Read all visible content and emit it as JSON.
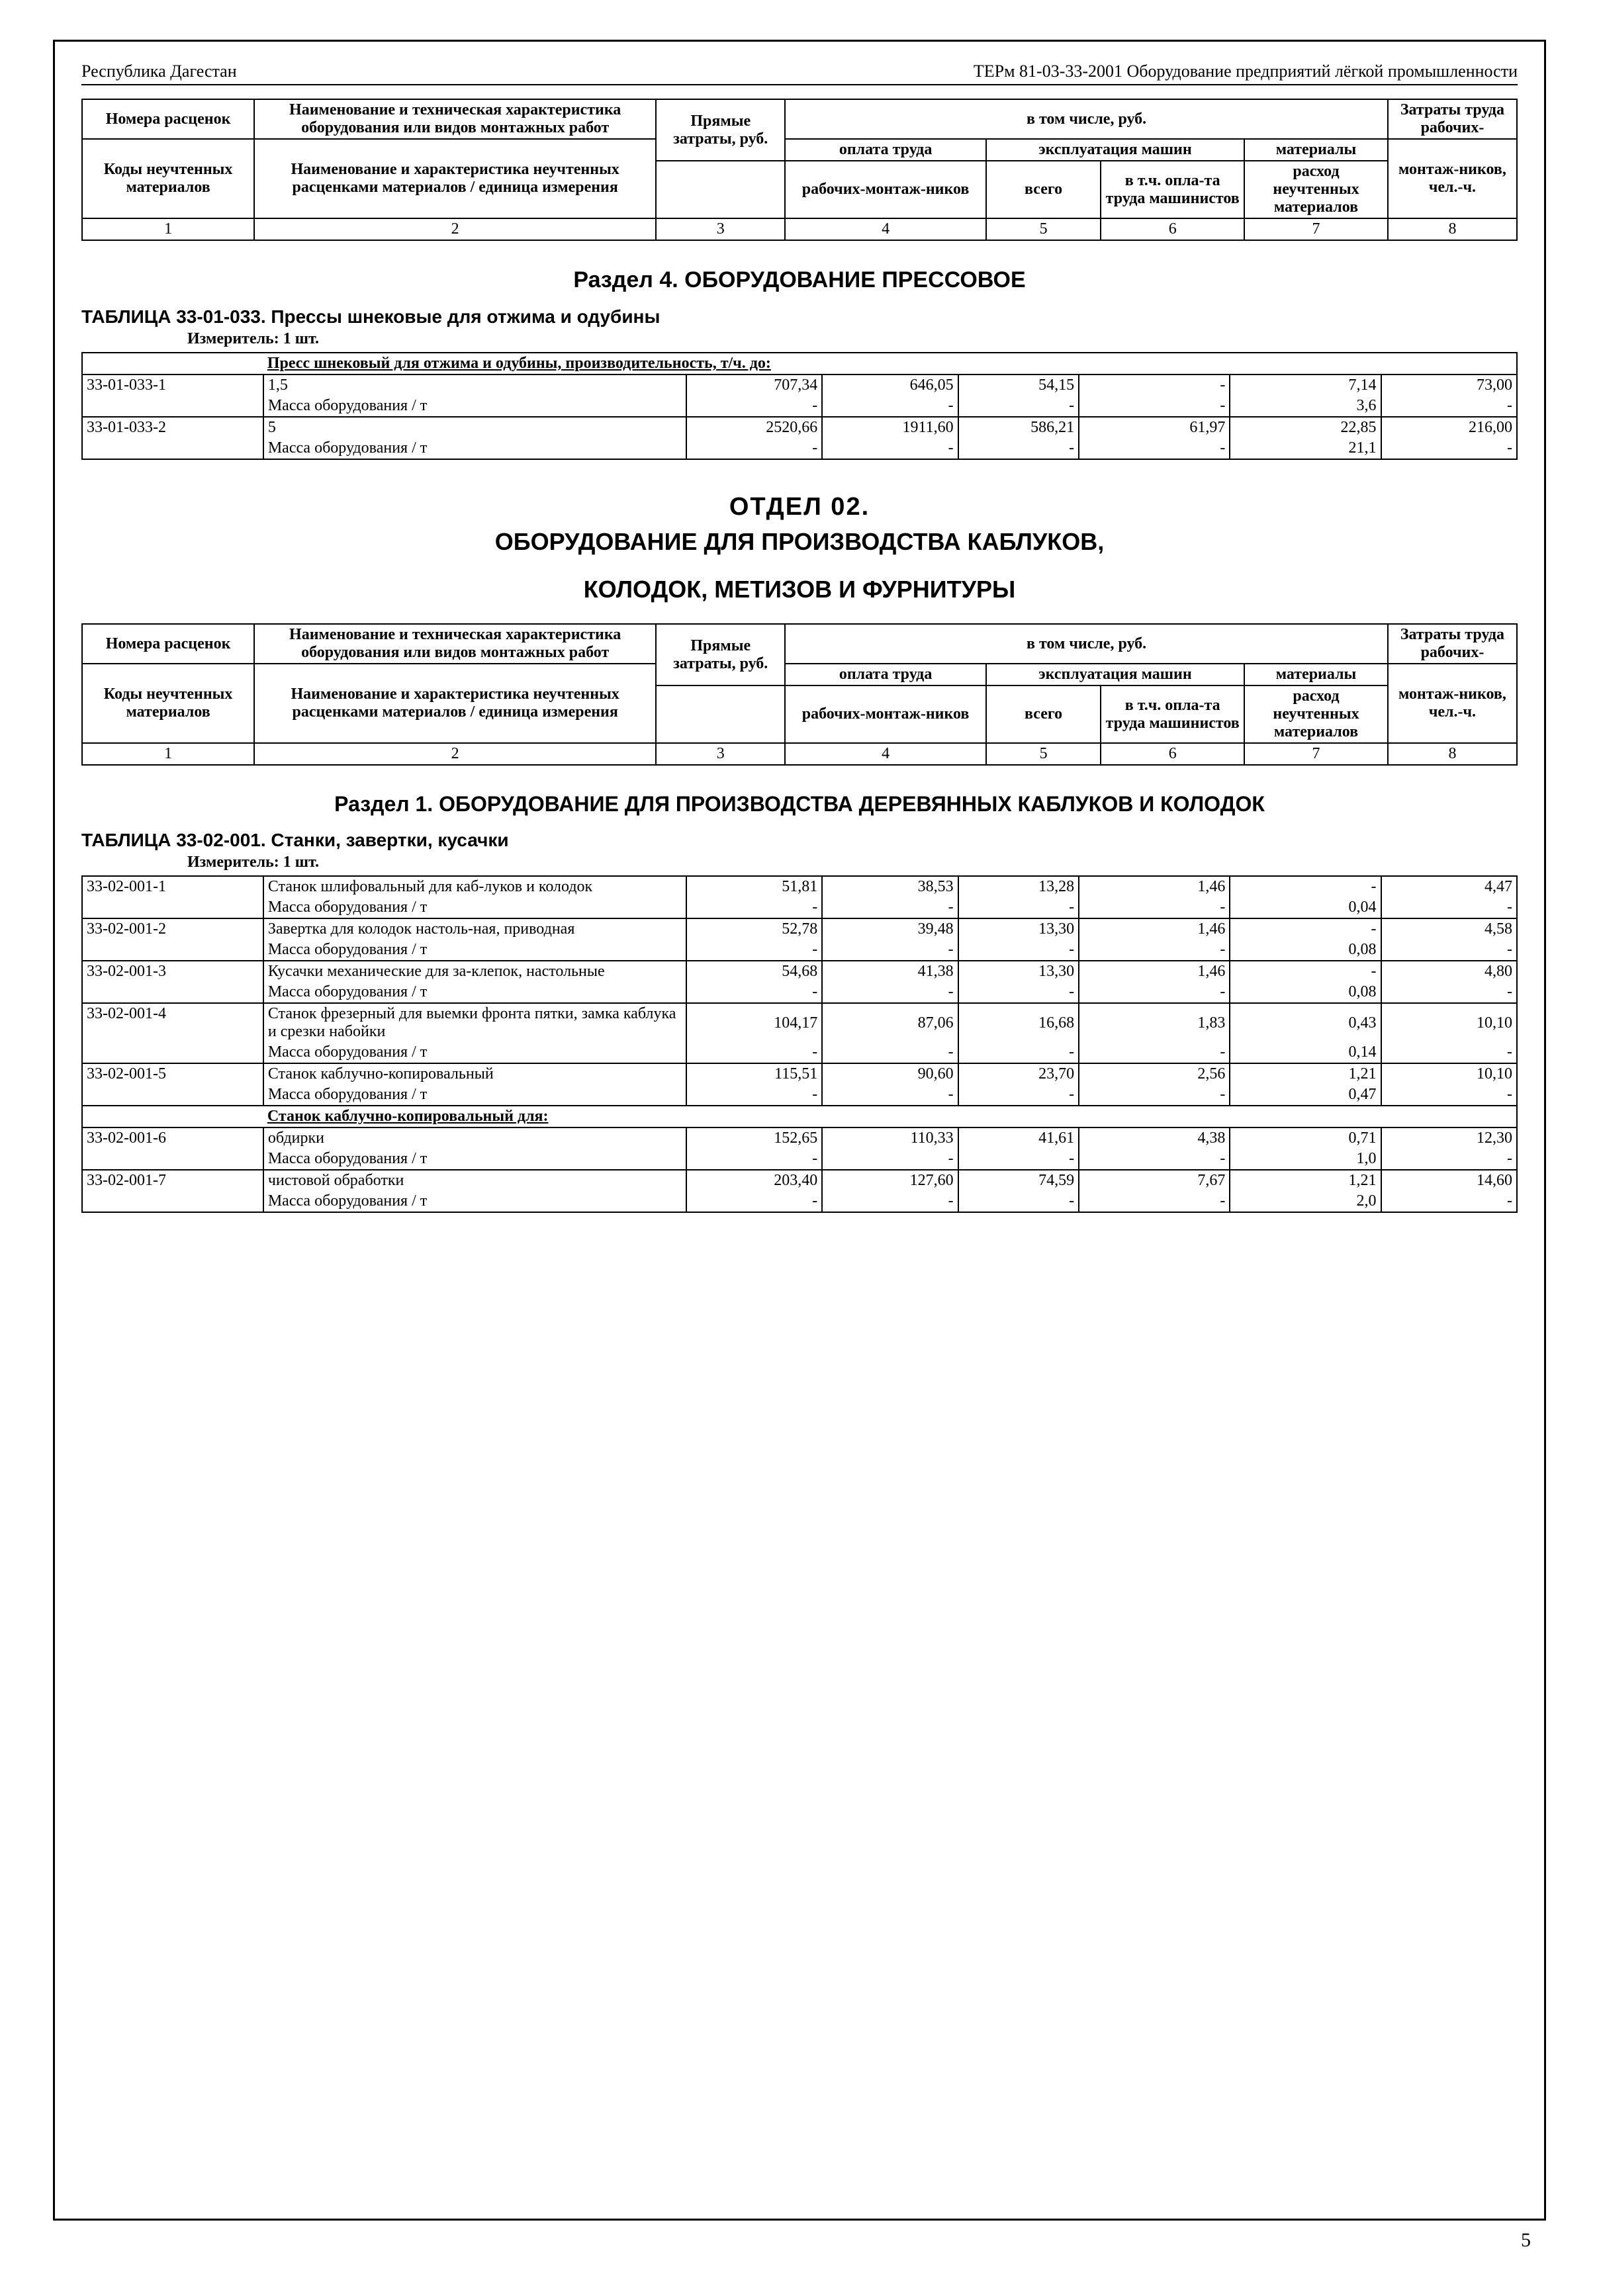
{
  "header_left": "Республика Дагестан",
  "header_right": "ТЕРм 81-03-33-2001 Оборудование предприятий лёгкой промышленности",
  "cols": {
    "c1a": "Номера расценок",
    "c1b": "Коды неучтенных материалов",
    "c2a": "Наименование и техническая характеристика оборудования или видов монтажных работ",
    "c2b": "Наименование и характеристика неучтенных расценками материалов / единица измерения",
    "c3": "Прямые затраты, руб.",
    "c_top": "в том числе, руб.",
    "c4a": "оплата труда",
    "c4b": "рабочих-монтаж-ников",
    "c56": "эксплуатация машин",
    "c5": "всего",
    "c6": "в т.ч. опла-та труда машинистов",
    "c7a": "материалы",
    "c7b": "расход неучтенных материалов",
    "c8a": "Затраты труда рабочих-",
    "c8b": "монтаж-ников, чел.-ч."
  },
  "nums": [
    "1",
    "2",
    "3",
    "4",
    "5",
    "6",
    "7",
    "8"
  ],
  "sec4": "Раздел 4. ОБОРУДОВАНИЕ ПРЕССОВОЕ",
  "t033_title": "ТАБЛИЦА  33-01-033.  Прессы шнековые для отжима и одубины",
  "measure": "Измеритель: 1 шт.",
  "t033_span": "Пресс шнековый для отжима и одубины, производительность, т/ч. до:",
  "mass": "Масса оборудования / т",
  "t033_rows": [
    {
      "code": "33-01-033-1",
      "name": "1,5",
      "v": [
        "707,34",
        "646,05",
        "54,15",
        "-",
        "7,14",
        "73,00"
      ],
      "m": "3,6"
    },
    {
      "code": "33-01-033-2",
      "name": "5",
      "v": [
        "2520,66",
        "1911,60",
        "586,21",
        "61,97",
        "22,85",
        "216,00"
      ],
      "m": "21,1"
    }
  ],
  "otdel": "ОТДЕЛ  02.",
  "otdel_sub1": "ОБОРУДОВАНИЕ  ДЛЯ ПРОИЗВОДСТВА КАБЛУКОВ,",
  "otdel_sub2": "КОЛОДОК, МЕТИЗОВ И ФУРНИТУРЫ",
  "sec1": "Раздел 1. ОБОРУДОВАНИЕ ДЛЯ ПРОИЗВОДСТВА ДЕРЕВЯННЫХ КАБЛУКОВ И КОЛОДОК",
  "t001_title": "ТАБЛИЦА  33-02-001.  Станки, завертки, кусачки",
  "t001_rows": [
    {
      "code": "33-02-001-1",
      "name": "Станок шлифовальный для каб-луков и колодок",
      "v": [
        "51,81",
        "38,53",
        "13,28",
        "1,46",
        "-",
        "4,47"
      ],
      "m": "0,04"
    },
    {
      "code": "33-02-001-2",
      "name": "Завертка для колодок настоль-ная, приводная",
      "v": [
        "52,78",
        "39,48",
        "13,30",
        "1,46",
        "-",
        "4,58"
      ],
      "m": "0,08"
    },
    {
      "code": "33-02-001-3",
      "name": "Кусачки механические для за-клепок, настольные",
      "v": [
        "54,68",
        "41,38",
        "13,30",
        "1,46",
        "-",
        "4,80"
      ],
      "m": "0,08"
    },
    {
      "code": "33-02-001-4",
      "name": "Станок фрезерный для выемки фронта пятки, замка каблука и срезки набойки",
      "v": [
        "104,17",
        "87,06",
        "16,68",
        "1,83",
        "0,43",
        "10,10"
      ],
      "m": "0,14"
    },
    {
      "code": "33-02-001-5",
      "name": "Станок каблучно-копировальный",
      "v": [
        "115,51",
        "90,60",
        "23,70",
        "2,56",
        "1,21",
        "10,10"
      ],
      "m": "0,47"
    }
  ],
  "t001_span": "Станок каблучно-копировальный для:",
  "t001_rows2": [
    {
      "code": "33-02-001-6",
      "name": "обдирки",
      "v": [
        "152,65",
        "110,33",
        "41,61",
        "4,38",
        "0,71",
        "12,30"
      ],
      "m": "1,0"
    },
    {
      "code": "33-02-001-7",
      "name": "чистовой обработки",
      "v": [
        "203,40",
        "127,60",
        "74,59",
        "7,67",
        "1,21",
        "14,60"
      ],
      "m": "2,0"
    }
  ],
  "page_num": "5"
}
